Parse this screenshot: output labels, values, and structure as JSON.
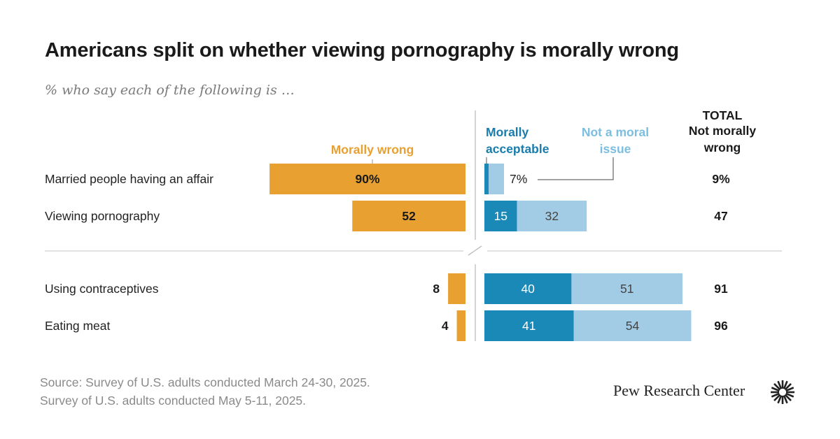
{
  "title": "Americans split on whether viewing pornography is morally wrong",
  "subtitle": "% who say each of the following is …",
  "source_lines": [
    "Source: Survey of U.S. adults conducted March 24-30, 2025.",
    "Survey of U.S. adults conducted May 5-11, 2025."
  ],
  "brand": "Pew Research Center",
  "brand_icon": "pew-sunburst-icon",
  "colors": {
    "morally_wrong": "#E8A030",
    "morally_acceptable": "#1A89B8",
    "not_moral_issue": "#A2CCE6",
    "wrong_label": "#E8A030",
    "acceptable_label": "#1A7CAB",
    "not_issue_label": "#7DBDE0"
  },
  "chart_data": {
    "type": "bar",
    "orientation": "horizontal",
    "stacked": "diverging",
    "categories": [
      "Married people having an affair",
      "Viewing pornography",
      "Using contraceptives",
      "Eating meat"
    ],
    "groups": [
      [
        0,
        1
      ],
      [
        2,
        3
      ]
    ],
    "series": [
      {
        "name": "Morally wrong",
        "values": [
          90,
          52,
          8,
          4
        ],
        "labels": [
          "90%",
          "52",
          "8",
          "4"
        ],
        "side": "left"
      },
      {
        "name": "Morally acceptable",
        "values": [
          2,
          15,
          40,
          41
        ],
        "labels": [
          "",
          "15",
          "40",
          "41"
        ],
        "side": "right"
      },
      {
        "name": "Not a moral issue",
        "values": [
          7,
          32,
          51,
          54
        ],
        "labels": [
          "7%",
          "32",
          "51",
          "54"
        ],
        "side": "right"
      }
    ],
    "legend": {
      "morally_wrong": "Morally wrong",
      "morally_acceptable": [
        "Morally",
        "acceptable"
      ],
      "not_moral_issue": [
        "Not a moral",
        "issue"
      ]
    },
    "total": {
      "header": [
        "TOTAL",
        "Not morally",
        "wrong"
      ],
      "values": [
        "9%",
        "47",
        "91",
        "96"
      ]
    }
  }
}
